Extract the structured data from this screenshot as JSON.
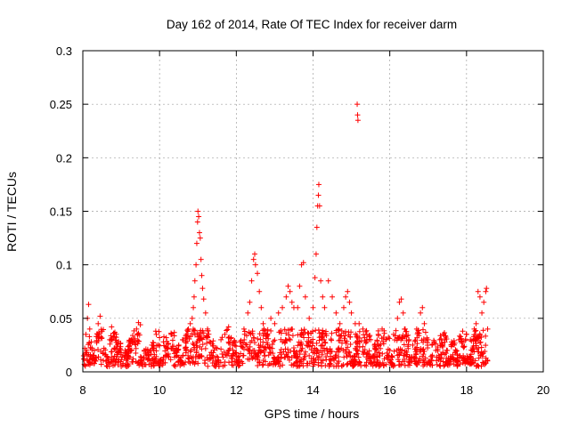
{
  "chart_data": {
    "type": "scatter",
    "title": "Day 162 of 2014, Rate Of TEC Index for receiver darm",
    "xlabel": "GPS time / hours",
    "ylabel": "ROTI / TECUs",
    "xlim": [
      8,
      20
    ],
    "ylim": [
      0,
      0.3
    ],
    "x_ticks": [
      8,
      10,
      12,
      14,
      16,
      18,
      20
    ],
    "y_ticks": [
      0,
      0.05,
      0.1,
      0.15,
      0.2,
      0.25,
      0.3
    ],
    "x_tick_labels": [
      "8",
      "10",
      "12",
      "14",
      "16",
      "18",
      "20"
    ],
    "y_tick_labels": [
      "0",
      "0.05",
      "0.1",
      "0.15",
      "0.2",
      "0.25",
      "0.3"
    ],
    "grid": true,
    "marker": "+",
    "series_color": "#ff0000",
    "series": [
      {
        "name": "ROTI",
        "points": [
          [
            8.02,
            0.015
          ],
          [
            8.05,
            0.022
          ],
          [
            8.08,
            0.035
          ],
          [
            8.1,
            0.018
          ],
          [
            8.12,
            0.05
          ],
          [
            8.15,
            0.063
          ],
          [
            8.18,
            0.04
          ],
          [
            8.22,
            0.028
          ],
          [
            8.25,
            0.012
          ],
          [
            8.3,
            0.02
          ],
          [
            8.35,
            0.033
          ],
          [
            8.4,
            0.045
          ],
          [
            8.45,
            0.052
          ],
          [
            8.5,
            0.038
          ],
          [
            8.55,
            0.022
          ],
          [
            8.6,
            0.016
          ],
          [
            8.7,
            0.03
          ],
          [
            8.75,
            0.042
          ],
          [
            8.8,
            0.036
          ],
          [
            8.9,
            0.025
          ],
          [
            9.0,
            0.018
          ],
          [
            9.1,
            0.02
          ],
          [
            9.2,
            0.028
          ],
          [
            9.3,
            0.034
          ],
          [
            9.4,
            0.04
          ],
          [
            9.45,
            0.046
          ],
          [
            9.5,
            0.044
          ],
          [
            9.6,
            0.02
          ],
          [
            9.7,
            0.015
          ],
          [
            9.8,
            0.025
          ],
          [
            9.9,
            0.038
          ],
          [
            10.0,
            0.032
          ],
          [
            10.1,
            0.028
          ],
          [
            10.2,
            0.022
          ],
          [
            10.3,
            0.035
          ],
          [
            10.4,
            0.02
          ],
          [
            10.5,
            0.025
          ],
          [
            10.6,
            0.03
          ],
          [
            10.7,
            0.035
          ],
          [
            10.75,
            0.04
          ],
          [
            10.8,
            0.045
          ],
          [
            10.85,
            0.05
          ],
          [
            10.88,
            0.06
          ],
          [
            10.9,
            0.07
          ],
          [
            10.92,
            0.085
          ],
          [
            10.95,
            0.1
          ],
          [
            10.97,
            0.12
          ],
          [
            10.99,
            0.14
          ],
          [
            11.0,
            0.15
          ],
          [
            11.02,
            0.145
          ],
          [
            11.04,
            0.13
          ],
          [
            11.06,
            0.125
          ],
          [
            11.08,
            0.105
          ],
          [
            11.1,
            0.09
          ],
          [
            11.12,
            0.078
          ],
          [
            11.15,
            0.068
          ],
          [
            11.2,
            0.055
          ],
          [
            11.25,
            0.04
          ],
          [
            11.3,
            0.028
          ],
          [
            11.4,
            0.018
          ],
          [
            11.5,
            0.022
          ],
          [
            11.6,
            0.03
          ],
          [
            11.7,
            0.035
          ],
          [
            11.8,
            0.042
          ],
          [
            11.9,
            0.025
          ],
          [
            12.0,
            0.018
          ],
          [
            12.1,
            0.028
          ],
          [
            12.2,
            0.04
          ],
          [
            12.3,
            0.055
          ],
          [
            12.35,
            0.065
          ],
          [
            12.4,
            0.085
          ],
          [
            12.45,
            0.105
          ],
          [
            12.48,
            0.11
          ],
          [
            12.5,
            0.1
          ],
          [
            12.55,
            0.092
          ],
          [
            12.6,
            0.075
          ],
          [
            12.65,
            0.06
          ],
          [
            12.7,
            0.045
          ],
          [
            12.8,
            0.035
          ],
          [
            12.9,
            0.05
          ],
          [
            13.0,
            0.045
          ],
          [
            13.1,
            0.055
          ],
          [
            13.2,
            0.06
          ],
          [
            13.3,
            0.07
          ],
          [
            13.35,
            0.08
          ],
          [
            13.4,
            0.075
          ],
          [
            13.45,
            0.065
          ],
          [
            13.5,
            0.06
          ],
          [
            13.6,
            0.06
          ],
          [
            13.65,
            0.08
          ],
          [
            13.7,
            0.1
          ],
          [
            13.75,
            0.102
          ],
          [
            13.8,
            0.07
          ],
          [
            13.9,
            0.05
          ],
          [
            14.0,
            0.06
          ],
          [
            14.05,
            0.088
          ],
          [
            14.08,
            0.11
          ],
          [
            14.1,
            0.135
          ],
          [
            14.12,
            0.155
          ],
          [
            14.14,
            0.165
          ],
          [
            14.15,
            0.175
          ],
          [
            14.17,
            0.155
          ],
          [
            14.2,
            0.085
          ],
          [
            14.25,
            0.07
          ],
          [
            14.3,
            0.06
          ],
          [
            14.4,
            0.085
          ],
          [
            14.5,
            0.07
          ],
          [
            14.6,
            0.055
          ],
          [
            14.7,
            0.045
          ],
          [
            14.8,
            0.06
          ],
          [
            14.85,
            0.07
          ],
          [
            14.9,
            0.075
          ],
          [
            14.95,
            0.065
          ],
          [
            15.0,
            0.055
          ],
          [
            15.1,
            0.045
          ],
          [
            15.15,
            0.25
          ],
          [
            15.16,
            0.24
          ],
          [
            15.17,
            0.235
          ],
          [
            15.2,
            0.045
          ],
          [
            15.3,
            0.04
          ],
          [
            15.4,
            0.035
          ],
          [
            15.5,
            0.03
          ],
          [
            15.6,
            0.025
          ],
          [
            15.7,
            0.035
          ],
          [
            15.8,
            0.04
          ],
          [
            15.9,
            0.03
          ],
          [
            16.0,
            0.02
          ],
          [
            16.1,
            0.035
          ],
          [
            16.2,
            0.05
          ],
          [
            16.25,
            0.065
          ],
          [
            16.3,
            0.068
          ],
          [
            16.35,
            0.055
          ],
          [
            16.4,
            0.04
          ],
          [
            16.5,
            0.03
          ],
          [
            16.6,
            0.025
          ],
          [
            16.7,
            0.04
          ],
          [
            16.8,
            0.055
          ],
          [
            16.85,
            0.06
          ],
          [
            16.9,
            0.045
          ],
          [
            17.0,
            0.03
          ],
          [
            17.1,
            0.025
          ],
          [
            17.2,
            0.02
          ],
          [
            17.3,
            0.03
          ],
          [
            17.4,
            0.035
          ],
          [
            17.5,
            0.02
          ],
          [
            17.6,
            0.025
          ],
          [
            17.7,
            0.018
          ],
          [
            17.8,
            0.03
          ],
          [
            17.9,
            0.038
          ],
          [
            18.0,
            0.035
          ],
          [
            18.1,
            0.03
          ],
          [
            18.2,
            0.04
          ],
          [
            18.25,
            0.045
          ],
          [
            18.3,
            0.075
          ],
          [
            18.35,
            0.07
          ],
          [
            18.4,
            0.055
          ],
          [
            18.45,
            0.065
          ],
          [
            18.5,
            0.075
          ],
          [
            18.52,
            0.078
          ],
          [
            18.55,
            0.04
          ],
          [
            8.3,
            0.008
          ],
          [
            8.6,
            0.01
          ],
          [
            9.0,
            0.005
          ],
          [
            9.5,
            0.009
          ],
          [
            10.0,
            0.006
          ],
          [
            10.5,
            0.01
          ],
          [
            11.0,
            0.008
          ],
          [
            11.5,
            0.007
          ],
          [
            12.0,
            0.01
          ],
          [
            12.5,
            0.012
          ],
          [
            13.0,
            0.01
          ],
          [
            13.5,
            0.015
          ],
          [
            14.0,
            0.018
          ],
          [
            14.5,
            0.012
          ],
          [
            15.0,
            0.01
          ],
          [
            15.5,
            0.008
          ],
          [
            16.0,
            0.01
          ],
          [
            16.5,
            0.009
          ],
          [
            17.0,
            0.008
          ],
          [
            17.5,
            0.007
          ],
          [
            18.0,
            0.009
          ],
          [
            18.5,
            0.008
          ]
        ]
      }
    ]
  }
}
